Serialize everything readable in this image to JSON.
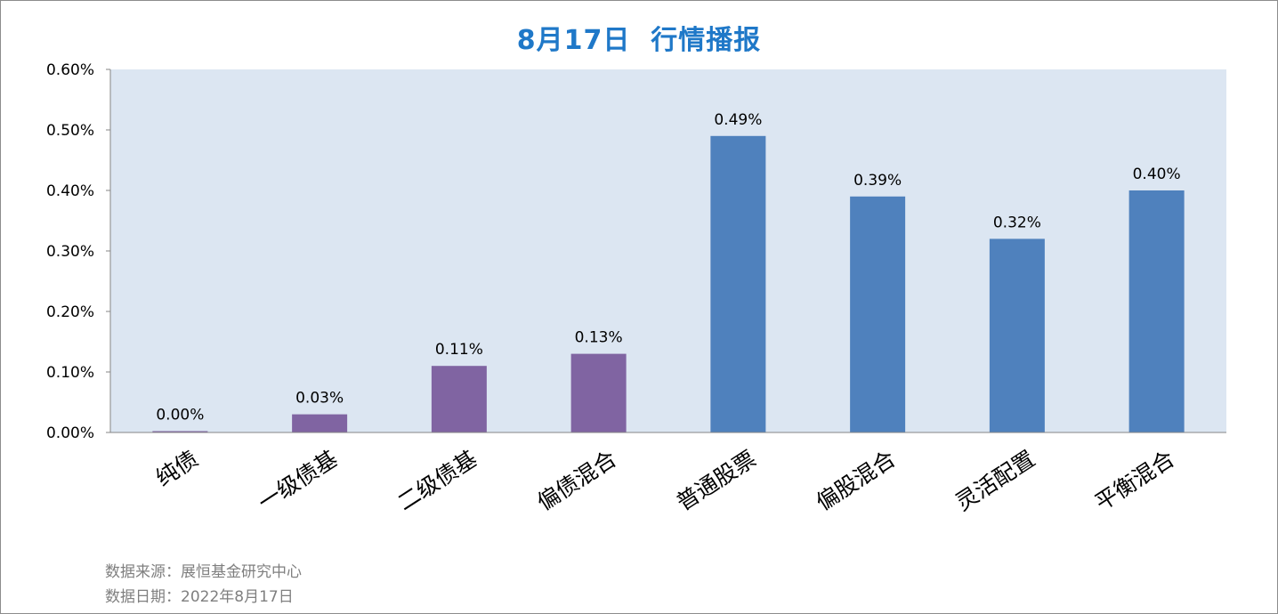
{
  "title": "8月17日  行情播报",
  "footer": {
    "source": "数据来源：展恒基金研究中心",
    "date": "数据日期：2022年8月17日"
  },
  "colors": {
    "plot_bg": "#dce6f2",
    "bond_bar": "#8064a2",
    "equity_bar": "#4f81bd",
    "title": "#1f78c8",
    "footer": "#7f7f7f"
  },
  "chart_data": {
    "type": "bar",
    "title": "8月17日  行情播报",
    "xlabel": "",
    "ylabel": "",
    "ylim": [
      0,
      0.6
    ],
    "yticks": [
      0,
      0.1,
      0.2,
      0.3,
      0.4,
      0.5,
      0.6
    ],
    "ytick_labels": [
      "0.00%",
      "0.10%",
      "0.20%",
      "0.30%",
      "0.40%",
      "0.50%",
      "0.60%"
    ],
    "grid": false,
    "unit": "%",
    "categories": [
      "纯债",
      "一级债基",
      "二级债基",
      "偏债混合",
      "普通股票",
      "偏股混合",
      "灵活配置",
      "平衡混合"
    ],
    "values": [
      0.0,
      0.03,
      0.11,
      0.13,
      0.49,
      0.39,
      0.32,
      0.4
    ],
    "data_labels": [
      "0.00%",
      "0.03%",
      "0.11%",
      "0.13%",
      "0.49%",
      "0.39%",
      "0.32%",
      "0.40%"
    ],
    "bar_colors": [
      "#8064a2",
      "#8064a2",
      "#8064a2",
      "#8064a2",
      "#4f81bd",
      "#4f81bd",
      "#4f81bd",
      "#4f81bd"
    ]
  }
}
